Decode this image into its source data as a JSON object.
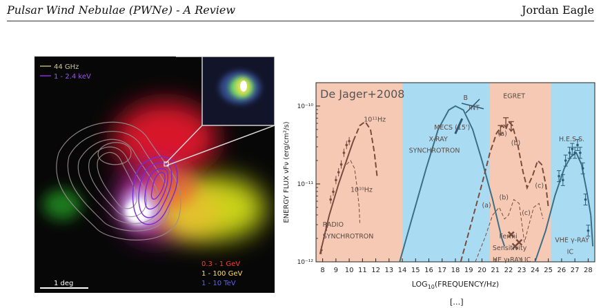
{
  "header": {
    "left_title": "Pulsar Wind Nebulae (PWNe) - A Review",
    "right_author": "Jordan Eagle"
  },
  "left_image": {
    "contour_legend": [
      {
        "label": "44 GHz",
        "color": "#b9b074"
      },
      {
        "label": "1 - 2.4 keV",
        "color": "#8a2be2"
      }
    ],
    "band_legend": [
      {
        "label": "0.3 - 1 GeV",
        "color": "#ff3b2f"
      },
      {
        "label": "1 - 100 GeV",
        "color": "#ffe14a"
      },
      {
        "label": "1 - 10 TeV",
        "color": "#3a44ff"
      }
    ],
    "scale_bar": "1 deg"
  },
  "chart_data": {
    "type": "line",
    "title": "De Jager+2008",
    "xlabel_prefix": "LOG",
    "xlabel_sub": "10",
    "xlabel_suffix": "(FREQUENCY/Hz)",
    "ylabel": "ENERGY FLUX νFν (erg/cm²/s)",
    "xlim": [
      7.5,
      28.5
    ],
    "ylim_log10": [
      -12,
      -9.7
    ],
    "x_ticks": [
      "8",
      "9",
      "10",
      "11",
      "12",
      "13",
      "14",
      "15",
      "16",
      "17",
      "18",
      "19",
      "20",
      "21",
      "22",
      "23",
      "24",
      "25",
      "26",
      "27",
      "28"
    ],
    "y_ticks": [
      {
        "label": "10⁻¹⁰",
        "value": -10
      },
      {
        "label": "10⁻¹¹",
        "value": -11
      },
      {
        "label": "10⁻¹²",
        "value": -12
      }
    ],
    "bands": [
      {
        "from": 7.5,
        "to": 14,
        "color": "#f5c9b3"
      },
      {
        "from": 14,
        "to": 20.6,
        "color": "#a9dcf2"
      },
      {
        "from": 20.6,
        "to": 25.2,
        "color": "#f5c9b3"
      },
      {
        "from": 25.2,
        "to": 28.5,
        "color": "#a9dcf2"
      }
    ],
    "series": [
      {
        "style": "solid",
        "points": [
          [
            7.8,
            -11.9
          ],
          [
            8.5,
            -11.4
          ],
          [
            9.2,
            -11.0
          ],
          [
            9.8,
            -10.7
          ],
          [
            10.3,
            -10.45
          ]
        ]
      },
      {
        "style": "dashed",
        "points": [
          [
            10.3,
            -10.45
          ],
          [
            10.8,
            -10.25
          ],
          [
            11.2,
            -10.2
          ],
          [
            11.6,
            -10.3
          ],
          [
            11.9,
            -10.6
          ],
          [
            12.1,
            -10.9
          ]
        ]
      },
      {
        "style": "thin-dashed",
        "points": [
          [
            9.8,
            -10.75
          ],
          [
            10.1,
            -10.7
          ],
          [
            10.4,
            -10.8
          ],
          [
            10.6,
            -11.05
          ],
          [
            10.75,
            -11.3
          ],
          [
            10.8,
            -11.5
          ]
        ]
      },
      {
        "style": "solid",
        "points": [
          [
            13.8,
            -12.0
          ],
          [
            14.8,
            -11.4
          ],
          [
            15.8,
            -10.8
          ],
          [
            16.7,
            -10.3
          ],
          [
            17.5,
            -10.05
          ],
          [
            18.0,
            -10.0
          ],
          [
            18.6,
            -10.05
          ],
          [
            19.3,
            -10.3
          ],
          [
            20.0,
            -10.7
          ],
          [
            20.8,
            -11.2
          ],
          [
            21.5,
            -11.7
          ],
          [
            21.7,
            -11.8
          ]
        ]
      },
      {
        "style": "dashed",
        "points": [
          [
            18.4,
            -12.0
          ],
          [
            19.2,
            -11.5
          ],
          [
            20.0,
            -11.0
          ],
          [
            20.6,
            -10.6
          ],
          [
            21.1,
            -10.35
          ],
          [
            21.5,
            -10.25
          ],
          [
            21.8,
            -10.3
          ],
          [
            22.0,
            -10.2
          ],
          [
            22.3,
            -10.25
          ],
          [
            22.7,
            -10.5
          ],
          [
            23.1,
            -10.85
          ],
          [
            23.4,
            -11.05
          ],
          [
            23.8,
            -10.9
          ],
          [
            24.2,
            -10.7
          ],
          [
            24.5,
            -10.75
          ],
          [
            24.8,
            -11.0
          ],
          [
            25.0,
            -11.3
          ]
        ]
      },
      {
        "style": "thin-dashed",
        "points": [
          [
            19.5,
            -12.0
          ],
          [
            20.2,
            -11.7
          ],
          [
            20.8,
            -11.4
          ],
          [
            21.3,
            -11.3
          ],
          [
            21.7,
            -11.45
          ],
          [
            22.0,
            -11.4
          ],
          [
            22.4,
            -11.2
          ],
          [
            22.8,
            -11.25
          ],
          [
            23.0,
            -11.5
          ],
          [
            23.2,
            -11.75
          ],
          [
            23.5,
            -11.55
          ],
          [
            23.9,
            -11.3
          ],
          [
            24.3,
            -11.25
          ],
          [
            24.6,
            -11.45
          ]
        ]
      },
      {
        "style": "solid",
        "points": [
          [
            24.0,
            -12.0
          ],
          [
            24.8,
            -11.6
          ],
          [
            25.5,
            -11.15
          ],
          [
            26.2,
            -10.8
          ],
          [
            26.7,
            -10.65
          ],
          [
            27.1,
            -10.6
          ],
          [
            27.5,
            -10.75
          ],
          [
            27.9,
            -11.1
          ],
          [
            28.2,
            -11.4
          ]
        ]
      },
      {
        "style": "solid",
        "points": [
          [
            28.2,
            -11.4
          ],
          [
            28.35,
            -11.8
          ]
        ]
      }
    ],
    "points_radio": [
      [
        7.9,
        -11.85
      ],
      [
        8.3,
        -11.55
      ],
      [
        8.6,
        -11.2
      ],
      [
        8.8,
        -11.1
      ],
      [
        9.0,
        -10.95
      ],
      [
        9.2,
        -10.85
      ],
      [
        9.4,
        -10.75
      ],
      [
        9.6,
        -10.6
      ],
      [
        9.8,
        -10.5
      ],
      [
        10.0,
        -10.45
      ]
    ],
    "points_hess": [
      [
        25.8,
        -10.9
      ],
      [
        26.1,
        -10.95
      ],
      [
        26.3,
        -10.7
      ],
      [
        26.6,
        -10.6
      ],
      [
        26.8,
        -10.55
      ],
      [
        27.0,
        -10.6
      ],
      [
        27.2,
        -10.5
      ],
      [
        27.4,
        -10.6
      ],
      [
        27.6,
        -10.8
      ],
      [
        27.8,
        -11.2
      ],
      [
        28.0,
        -11.6
      ]
    ],
    "fermi_points": [
      [
        22.2,
        -11.65
      ],
      [
        22.5,
        -11.8
      ],
      [
        22.8,
        -11.75
      ]
    ],
    "egret_limits": [
      [
        21.4,
        -10.25
      ],
      [
        21.8,
        -10.15
      ],
      [
        22.2,
        -10.2
      ]
    ],
    "annotations": [
      {
        "text": "10¹¹Hz",
        "x": 11.1,
        "y": -10.2
      },
      {
        "text": "10¹⁰Hz",
        "x": 10.1,
        "y": -11.1
      },
      {
        "text": "RADIO",
        "x": 8.0,
        "y": -11.55
      },
      {
        "text": "SYNCHROTRON",
        "x": 8.0,
        "y": -11.7
      },
      {
        "text": "X-RAY",
        "x": 16.0,
        "y": -10.45
      },
      {
        "text": "SYNCHROTRON",
        "x": 14.5,
        "y": -10.6
      },
      {
        "text": "MECS (15')",
        "x": 16.4,
        "y": -10.3
      },
      {
        "text": "B",
        "x": 18.6,
        "y": -9.92
      },
      {
        "text": "INT",
        "x": 19.0,
        "y": -10.05
      },
      {
        "text": "EGRET",
        "x": 21.6,
        "y": -9.9
      },
      {
        "text": "(a)",
        "x": 21.2,
        "y": -10.38
      },
      {
        "text": "(b)",
        "x": 22.2,
        "y": -10.5
      },
      {
        "text": "(c)",
        "x": 24.0,
        "y": -11.05
      },
      {
        "text": "(a)",
        "x": 20.0,
        "y": -11.3
      },
      {
        "text": "(b)",
        "x": 21.3,
        "y": -11.2
      },
      {
        "text": "(c)",
        "x": 23.0,
        "y": -11.4
      },
      {
        "text": "Fermi",
        "x": 21.3,
        "y": -11.7
      },
      {
        "text": "Sensitivity",
        "x": 20.8,
        "y": -11.85
      },
      {
        "text": "HE γ-RAY IC",
        "x": 20.8,
        "y": -12.0
      },
      {
        "text": "H.E.S.S.",
        "x": 25.8,
        "y": -10.45
      },
      {
        "text": "VHE γ-RAY",
        "x": 25.5,
        "y": -11.75
      },
      {
        "text": "IC",
        "x": 26.4,
        "y": -11.9
      }
    ]
  },
  "citation": "[…]"
}
